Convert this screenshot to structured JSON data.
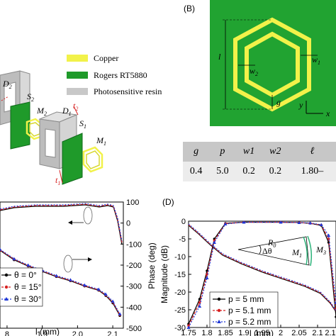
{
  "panel_a": {
    "legend": [
      {
        "label": "Copper",
        "color": "#f2f24a"
      },
      {
        "label": "Rogers RT5880",
        "color": "#1f9a2a"
      },
      {
        "label": "Photosensitive resin",
        "color": "#c8c8c8"
      }
    ],
    "parts": {
      "d2": "D",
      "d2_sub": "2",
      "s2": "S",
      "s2_sub": "2",
      "m2": "M",
      "m2_sub": "2",
      "d1": "D",
      "d1_sub": "1",
      "t2": "t",
      "t2_sub": "2",
      "s1": "S",
      "s1_sub": "1",
      "m1": "M",
      "m1_sub": "1",
      "t1": "t",
      "t1_sub": "1"
    }
  },
  "panel_b": {
    "letter": "(B)",
    "labels": {
      "l": "l",
      "w1": "w",
      "w1_sub": "1",
      "w2": "w",
      "w2_sub": "2",
      "g": "g",
      "y": "y",
      "x": "x"
    }
  },
  "table": {
    "headers": [
      "g",
      "p",
      "w1",
      "w2",
      "ℓ"
    ],
    "values": [
      "0.4",
      "5.0",
      "0.2",
      "0.2",
      "1.80–"
    ]
  },
  "panel_c": {
    "xlabel": "l (mm)",
    "ylabel_right": "Phase (deg)",
    "x_ticks": [
      "8",
      "1.9",
      "2.0",
      "2.1"
    ],
    "y_right_ticks": [
      "100",
      "0",
      "-100",
      "-200",
      "-300",
      "-400",
      "-500"
    ],
    "legend": [
      "θ = 0°",
      "θ = 15°",
      "θ = 30°"
    ]
  },
  "panel_d": {
    "letter": "(D)",
    "xlabel": "l (mm)",
    "ylabel": "Magnitude (dB)",
    "x_ticks": [
      "1.75",
      "1.8",
      "1.85",
      "1.9",
      "1.95",
      "2",
      "2.05",
      "2.1",
      "2.1"
    ],
    "y_ticks": [
      "0",
      "-5",
      "-10",
      "-15",
      "-20",
      "-25",
      "-30"
    ],
    "legend": [
      "p = 5 mm",
      "p = 5.1 mm",
      "p = 5.2 mm"
    ],
    "inset": {
      "r0": "R",
      "r0_sub": "0",
      "dtheta": "Δθ",
      "m1": "M",
      "m1_sub": "1",
      "m3": "M",
      "m3_sub": "3"
    }
  },
  "chart_data": [
    {
      "type": "line",
      "panel": "C",
      "xlabel": "l (mm)",
      "ylabel": "Phase (deg)",
      "xlim": [
        1.78,
        2.13
      ],
      "ylim": [
        -500,
        100
      ],
      "series": [
        {
          "name": "θ = 0°",
          "color": "#000000",
          "x": [
            1.78,
            1.82,
            1.86,
            1.9,
            1.94,
            1.98,
            2.02,
            2.06,
            2.08,
            2.1,
            2.12
          ],
          "y": [
            -130,
            -175,
            -205,
            -230,
            -255,
            -275,
            -300,
            -320,
            -345,
            -380,
            -440
          ]
        },
        {
          "name": "θ = 15°",
          "color": "#d62020",
          "x": [
            1.78,
            1.82,
            1.86,
            1.9,
            1.94,
            1.98,
            2.02,
            2.06,
            2.08,
            2.1,
            2.12
          ],
          "y": [
            -128,
            -172,
            -203,
            -228,
            -253,
            -273,
            -298,
            -318,
            -342,
            -376,
            -436
          ]
        },
        {
          "name": "θ = 30°",
          "color": "#2038d6",
          "x": [
            1.78,
            1.82,
            1.86,
            1.9,
            1.94,
            1.98,
            2.02,
            2.06,
            2.08,
            2.1,
            2.12
          ],
          "y": [
            -125,
            -170,
            -200,
            -225,
            -250,
            -270,
            -295,
            -315,
            -338,
            -372,
            -432
          ]
        }
      ]
    },
    {
      "type": "line",
      "panel": "D",
      "xlabel": "l (mm)",
      "ylabel": "Magnitude (dB)",
      "xlim": [
        1.75,
        2.15
      ],
      "ylim": [
        -30,
        0
      ],
      "series": [
        {
          "name": "p = 5 mm",
          "color": "#000000",
          "x": [
            1.75,
            1.78,
            1.8,
            1.82,
            1.85,
            1.9,
            2.0,
            2.05,
            2.08,
            2.11,
            2.13,
            2.15
          ],
          "y": [
            -29,
            -22,
            -14,
            -5,
            -0.6,
            -0.3,
            -0.3,
            -0.4,
            -0.6,
            -1.2,
            -6,
            -27
          ]
        },
        {
          "name": "p = 5.1 mm",
          "color": "#d62020",
          "x": [
            1.75,
            1.78,
            1.8,
            1.82,
            1.85,
            1.9,
            2.0,
            2.05,
            2.08,
            2.11,
            2.13,
            2.15
          ],
          "y": [
            -29.5,
            -23,
            -15,
            -5.5,
            -0.7,
            -0.3,
            -0.3,
            -0.4,
            -0.6,
            -1.1,
            -5,
            -25
          ]
        },
        {
          "name": "p = 5.2 mm",
          "color": "#2038d6",
          "x": [
            1.75,
            1.78,
            1.8,
            1.82,
            1.85,
            1.9,
            2.0,
            2.05,
            2.08,
            2.11,
            2.13,
            2.15
          ],
          "y": [
            -30,
            -24,
            -16,
            -6,
            -0.8,
            -0.3,
            -0.3,
            -0.4,
            -0.5,
            -1.0,
            -4,
            -23
          ]
        }
      ]
    }
  ]
}
